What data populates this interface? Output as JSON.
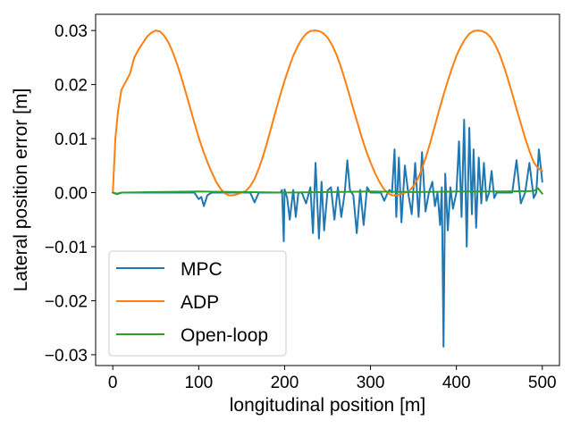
{
  "chart_data": {
    "type": "line",
    "xlabel": "longitudinal position [m]",
    "ylabel": "Lateral position error [m]",
    "xlim": [
      -20,
      520
    ],
    "ylim": [
      -0.032,
      0.033
    ],
    "xticks": [
      0,
      100,
      200,
      300,
      400,
      500
    ],
    "xtick_labels": [
      "0",
      "100",
      "200",
      "300",
      "400",
      "500"
    ],
    "yticks": [
      -0.03,
      -0.02,
      -0.01,
      0.0,
      0.01,
      0.02,
      0.03
    ],
    "ytick_labels": [
      "−0.03",
      "−0.02",
      "−0.01",
      "0.00",
      "0.01",
      "0.02",
      "0.03"
    ],
    "grid": false,
    "legend": {
      "position": "lower-left",
      "entries": [
        "MPC",
        "ADP",
        "Open-loop"
      ]
    },
    "series": [
      {
        "name": "MPC",
        "color": "#1f77b4",
        "x": [
          0,
          5,
          10,
          20,
          40,
          60,
          80,
          95,
          100,
          103,
          106,
          110,
          115,
          130,
          150,
          160,
          165,
          170,
          180,
          195,
          197,
          199,
          200,
          203,
          206,
          210,
          213,
          216,
          220,
          225,
          230,
          233,
          236,
          240,
          243,
          246,
          250,
          254,
          258,
          262,
          266,
          270,
          273,
          276,
          280,
          284,
          288,
          292,
          296,
          300,
          304,
          308,
          312,
          316,
          320,
          322,
          325,
          328,
          330,
          333,
          336,
          340,
          344,
          348,
          352,
          356,
          360,
          364,
          368,
          372,
          375,
          378,
          381,
          383,
          385,
          387,
          390,
          393,
          396,
          400,
          403,
          406,
          409,
          412,
          415,
          418,
          420,
          423,
          426,
          429,
          432,
          435,
          438,
          441,
          444,
          447,
          450,
          455,
          460,
          465,
          470,
          475,
          480,
          485,
          490,
          493,
          496,
          500
        ],
        "y": [
          0.0,
          -0.0002,
          0.0,
          0.0,
          0.0,
          0.0,
          0.0,
          0.0,
          -0.0012,
          -0.0008,
          -0.0025,
          -0.0005,
          0.0,
          0.0,
          0.0,
          0.0,
          -0.0018,
          0.0,
          0.0,
          0.0,
          0.0005,
          -0.009,
          0.0006,
          -0.001,
          -0.005,
          0.0005,
          -0.0045,
          0.0,
          0.0,
          -0.002,
          0.001,
          -0.0075,
          0.0055,
          -0.0085,
          0.002,
          -0.007,
          0.0004,
          0.001,
          -0.005,
          0.001,
          -0.0045,
          0.0,
          0.006,
          0.0005,
          -0.0005,
          -0.0075,
          0.0005,
          -0.006,
          0.001,
          0.0,
          0.0,
          0.0,
          0.0,
          -0.0015,
          0.0,
          0.0005,
          0.0,
          0.008,
          -0.0045,
          0.0065,
          -0.0055,
          0.005,
          -0.0002,
          -0.004,
          0.0055,
          -0.0045,
          0.0075,
          -0.0035,
          0.0,
          0.002,
          -0.0025,
          0.0,
          -0.006,
          0.001,
          -0.0285,
          0.0035,
          -0.007,
          0.001,
          -0.003,
          0.0,
          0.0095,
          -0.0045,
          0.0135,
          -0.01,
          0.012,
          -0.004,
          0.008,
          -0.0065,
          0.0065,
          -0.002,
          0.0055,
          -0.0015,
          0.0,
          0.004,
          -0.001,
          0.0,
          0.0,
          0.0,
          0.0,
          0.0,
          0.006,
          -0.002,
          0.0,
          0.0055,
          -0.001,
          0.0,
          0.008,
          0.002
        ]
      },
      {
        "name": "ADP",
        "color": "#ff7f0e",
        "x": [
          0,
          3,
          6,
          10,
          15,
          20,
          25,
          30,
          35,
          40,
          45,
          50,
          55,
          60,
          65,
          70,
          75,
          80,
          85,
          90,
          95,
          100,
          105,
          110,
          115,
          120,
          125,
          130,
          135,
          140,
          145,
          150,
          155,
          160,
          165,
          170,
          175,
          180,
          185,
          190,
          195,
          200,
          205,
          210,
          215,
          220,
          225,
          230,
          235,
          240,
          245,
          250,
          255,
          260,
          265,
          270,
          275,
          280,
          285,
          290,
          295,
          300,
          305,
          310,
          315,
          320,
          325,
          330,
          335,
          340,
          345,
          350,
          355,
          360,
          365,
          370,
          375,
          380,
          385,
          390,
          395,
          400,
          405,
          410,
          415,
          420,
          425,
          430,
          435,
          440,
          445,
          450,
          455,
          460,
          465,
          470,
          475,
          480,
          485,
          490,
          495,
          500
        ],
        "y": [
          0.0,
          0.01,
          0.015,
          0.019,
          0.0205,
          0.022,
          0.025,
          0.0265,
          0.0277,
          0.0289,
          0.0296,
          0.03,
          0.0298,
          0.029,
          0.0277,
          0.0259,
          0.0237,
          0.0212,
          0.0185,
          0.0157,
          0.0129,
          0.0102,
          0.0078,
          0.0057,
          0.0038,
          0.0021,
          0.0008,
          -0.0001,
          -0.0005,
          -0.0005,
          -0.0003,
          0.0,
          0.0003,
          0.0012,
          0.0025,
          0.0045,
          0.0068,
          0.0095,
          0.0124,
          0.0153,
          0.0181,
          0.0207,
          0.0231,
          0.0253,
          0.027,
          0.0284,
          0.0294,
          0.0299,
          0.03,
          0.0299,
          0.0295,
          0.0287,
          0.0274,
          0.0257,
          0.0235,
          0.021,
          0.0183,
          0.0155,
          0.0128,
          0.0101,
          0.0077,
          0.0056,
          0.0037,
          0.0021,
          0.0008,
          -0.0001,
          -0.0005,
          -0.0005,
          -0.0003,
          0.0,
          0.0003,
          0.0012,
          0.0025,
          0.0045,
          0.0068,
          0.0095,
          0.0124,
          0.0153,
          0.0181,
          0.0207,
          0.0231,
          0.0253,
          0.027,
          0.0284,
          0.0294,
          0.0299,
          0.03,
          0.0299,
          0.0295,
          0.0287,
          0.0274,
          0.0257,
          0.0235,
          0.021,
          0.0183,
          0.0155,
          0.0128,
          0.0101,
          0.0077,
          0.0056,
          0.0045,
          0.004
        ]
      },
      {
        "name": "Open-loop",
        "color": "#2ca02c",
        "x": [
          0,
          5,
          10,
          50,
          100,
          150,
          200,
          250,
          300,
          350,
          400,
          450,
          490,
          495,
          500
        ],
        "y": [
          0.0,
          -0.0003,
          0.0,
          0.0001,
          0.0002,
          0.0001,
          0.0,
          0.0001,
          0.0002,
          0.0001,
          0.0002,
          0.0002,
          0.0003,
          0.0008,
          -0.0002
        ]
      }
    ]
  }
}
